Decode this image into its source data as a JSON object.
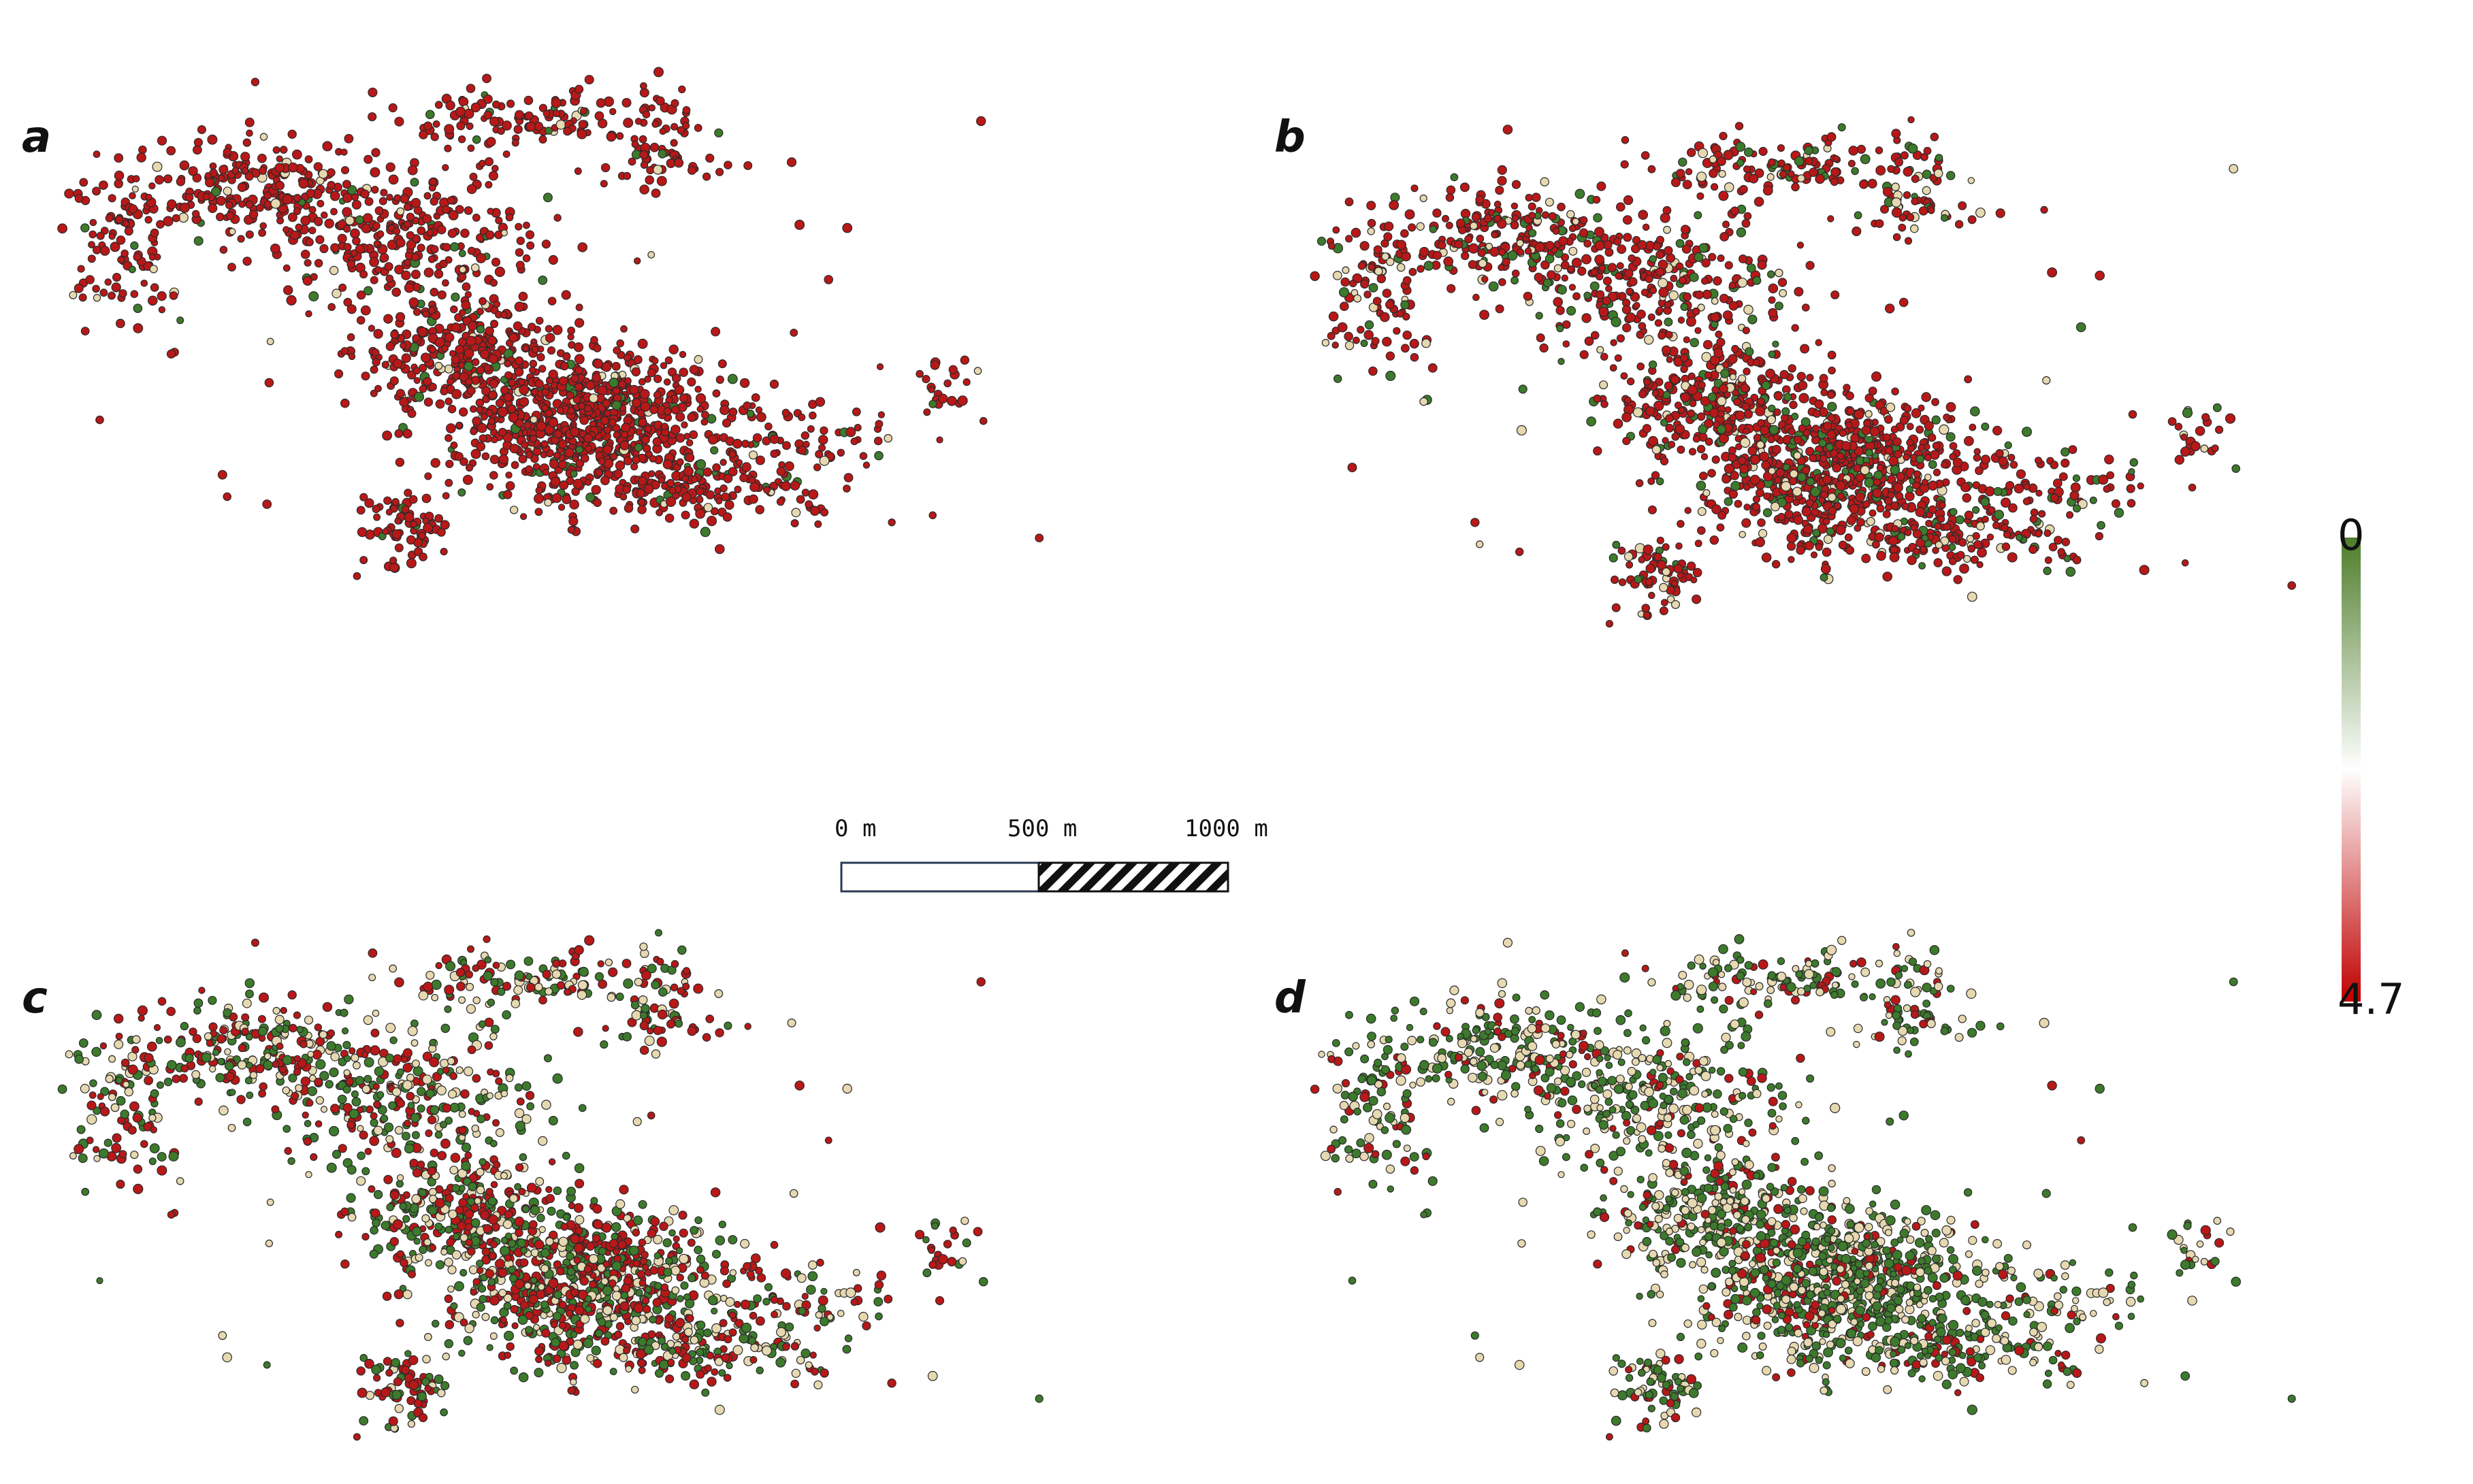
{
  "panels": [
    {
      "label": "a",
      "red_share": 0.9
    },
    {
      "label": "b",
      "red_share": 0.75
    },
    {
      "label": "c",
      "red_share": 0.45
    },
    {
      "label": "d",
      "red_share": 0.2
    }
  ],
  "scale_bar": {
    "labels": [
      "0 m",
      "500 m",
      "1000 m"
    ]
  },
  "legend": {
    "top_label": "0",
    "bottom_label": "4.7",
    "colors": {
      "top": "#4e7d2a",
      "middle": "#ffffff",
      "bottom": "#c00000"
    }
  },
  "point_colors": {
    "red": "#b81818",
    "green": "#3d7a2c",
    "beige": "#e6d8b0",
    "outline": "#2a2a2a"
  }
}
